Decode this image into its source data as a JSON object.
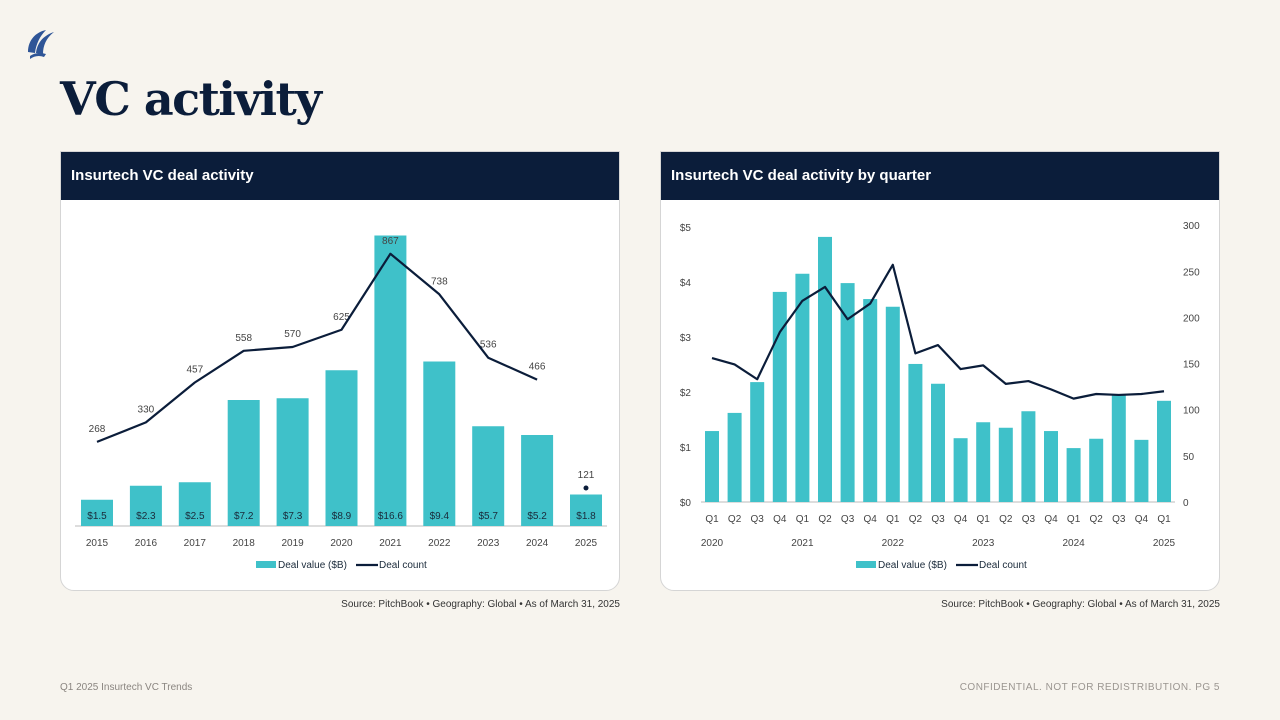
{
  "page": {
    "title": "VC activity",
    "footer_left": "Q1 2025 Insurtech VC Trends",
    "footer_right": "CONFIDENTIAL. NOT FOR REDISTRIBUTION.  PG 5",
    "logo_icon": "sail-logo-icon"
  },
  "colors": {
    "bar": "#3fc1c9",
    "line": "#0b1d3a",
    "header_bg": "#0b1d3a",
    "page_bg": "#f7f4ee"
  },
  "chart_data": [
    {
      "type": "bar",
      "title": "Insurtech VC deal activity",
      "source": "Source: PitchBook  •  Geography: Global  •  As of March 31, 2025",
      "categories": [
        "2015",
        "2016",
        "2017",
        "2018",
        "2019",
        "2020",
        "2021",
        "2022",
        "2023",
        "2024",
        "2025"
      ],
      "series": [
        {
          "name": "Deal value ($B)",
          "kind": "bar",
          "values": [
            1.5,
            2.3,
            2.5,
            7.2,
            7.3,
            8.9,
            16.6,
            9.4,
            5.7,
            5.2,
            1.8
          ],
          "labels": [
            "$1.5",
            "$2.3",
            "$2.5",
            "$7.2",
            "$7.3",
            "$8.9",
            "$16.6",
            "$9.4",
            "$5.7",
            "$5.2",
            "$1.8"
          ]
        },
        {
          "name": "Deal count",
          "kind": "line",
          "values": [
            268,
            330,
            457,
            558,
            570,
            625,
            867,
            738,
            536,
            466,
            121
          ],
          "labels": [
            "268",
            "330",
            "457",
            "558",
            "570",
            "625",
            "867",
            "738",
            "536",
            "466",
            "121"
          ],
          "line_break_before_last": true
        }
      ],
      "legend": [
        "Deal value ($B)",
        "Deal count"
      ],
      "legend_position": "bottom",
      "grid": false
    },
    {
      "type": "bar",
      "title": "Insurtech VC deal activity by quarter",
      "source": "Source: PitchBook  •  Geography: Global  •  As of March 31, 2025",
      "categories": [
        "Q1",
        "Q2",
        "Q3",
        "Q4",
        "Q1",
        "Q2",
        "Q3",
        "Q4",
        "Q1",
        "Q2",
        "Q3",
        "Q4",
        "Q1",
        "Q2",
        "Q3",
        "Q4",
        "Q1",
        "Q2",
        "Q3",
        "Q4",
        "Q1"
      ],
      "year_labels": [
        {
          "label": "2020",
          "index": 0
        },
        {
          "label": "2021",
          "index": 4
        },
        {
          "label": "2022",
          "index": 8
        },
        {
          "label": "2023",
          "index": 12
        },
        {
          "label": "2024",
          "index": 16
        },
        {
          "label": "2025",
          "index": 20
        }
      ],
      "series": [
        {
          "name": "Deal value ($B)",
          "kind": "bar",
          "axis": "left",
          "values": [
            1.29,
            1.62,
            2.18,
            3.82,
            4.15,
            4.82,
            3.98,
            3.69,
            3.55,
            2.51,
            2.15,
            1.16,
            1.45,
            1.35,
            1.65,
            1.29,
            0.98,
            1.15,
            1.96,
            1.13,
            1.84
          ]
        },
        {
          "name": "Deal count",
          "kind": "line",
          "axis": "right",
          "values": [
            156,
            149,
            133,
            184,
            218,
            233,
            198,
            215,
            257,
            161,
            170,
            144,
            148,
            128,
            131,
            122,
            112,
            117,
            116,
            117,
            120
          ]
        }
      ],
      "left_axis": {
        "ticks": [
          "$0",
          "$1",
          "$2",
          "$3",
          "$4",
          "$5"
        ],
        "range": [
          0,
          5
        ]
      },
      "right_axis": {
        "ticks": [
          "0",
          "50",
          "100",
          "150",
          "200",
          "250",
          "300"
        ],
        "range": [
          0,
          300
        ]
      },
      "legend": [
        "Deal value ($B)",
        "Deal count"
      ],
      "legend_position": "bottom",
      "grid": false
    }
  ]
}
